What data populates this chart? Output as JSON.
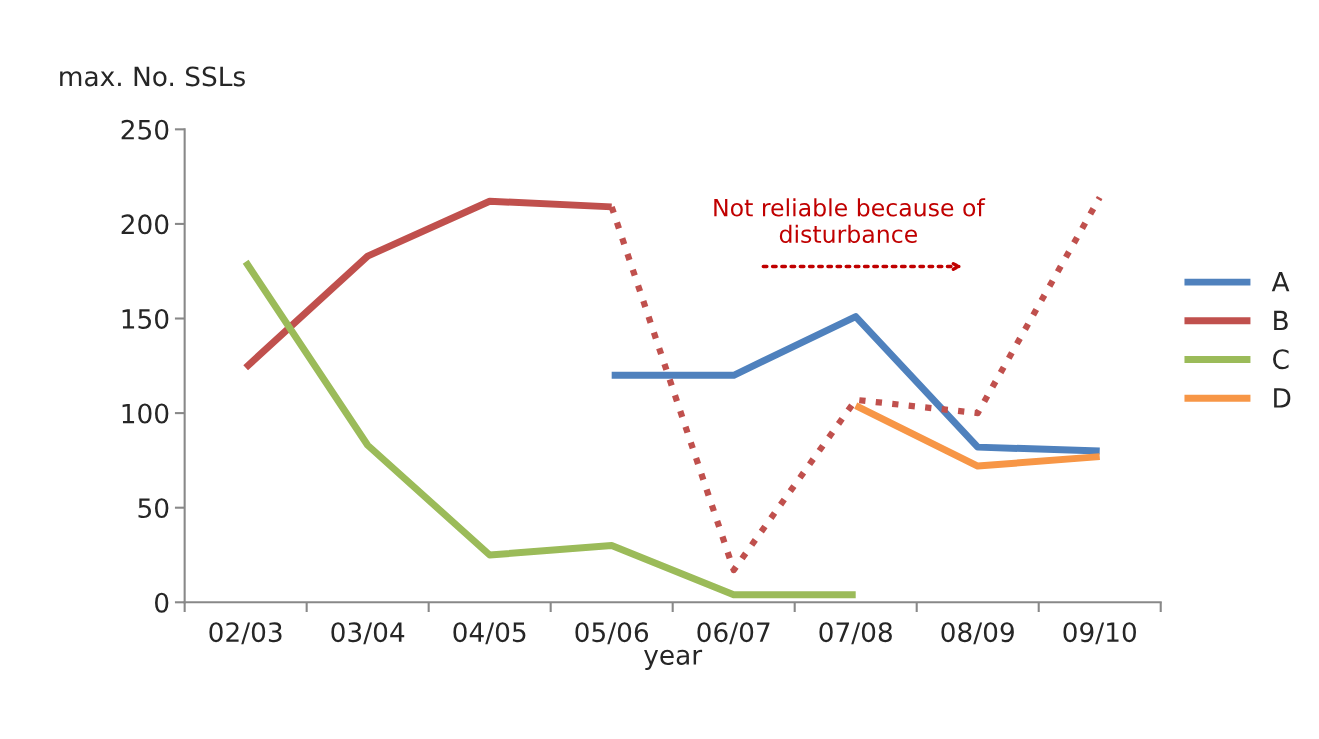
{
  "chart_data": {
    "type": "line",
    "ylabel": "max. No. SSLs",
    "xlabel": "year",
    "categories": [
      "02/03",
      "03/04",
      "04/05",
      "05/06",
      "06/07",
      "07/08",
      "08/09",
      "09/10"
    ],
    "series": [
      {
        "name": "A",
        "color": "#4f81bd",
        "values": [
          null,
          null,
          null,
          120,
          120,
          151,
          82,
          80
        ]
      },
      {
        "name": "B",
        "color": "#c0504d",
        "values": [
          124,
          183,
          212,
          209,
          null,
          null,
          null,
          null
        ]
      },
      {
        "color": "#c0504d",
        "line_style": "dotted",
        "values": [
          null,
          null,
          null,
          209,
          17,
          107,
          100,
          214
        ]
      },
      {
        "name": "C",
        "color": "#9bbb59",
        "values": [
          180,
          83,
          25,
          30,
          4,
          4,
          null,
          null
        ]
      },
      {
        "name": "D",
        "color": "#f79646",
        "values": [
          null,
          null,
          null,
          null,
          null,
          104,
          72,
          77
        ]
      }
    ],
    "ylim": [
      0,
      250
    ],
    "yticks": [
      0,
      50,
      100,
      150,
      200,
      250
    ],
    "annotations": [
      "Not reliable because of\ndisturbance"
    ],
    "grid": false,
    "legend": "right",
    "marker": "none"
  }
}
